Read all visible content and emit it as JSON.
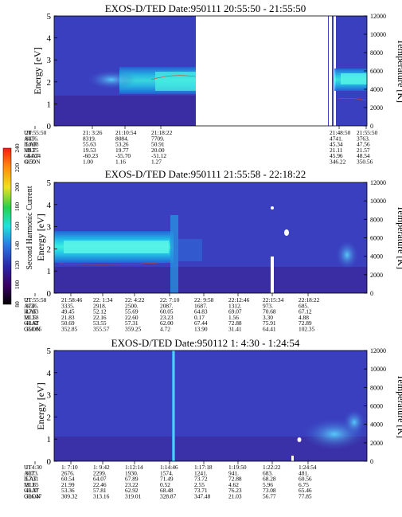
{
  "chart_data": [
    {
      "type": "heatmap",
      "title": "EXOS-D/TED   Date:950111   20:55:50 - 21:55:50",
      "ylabel": "Energy [eV]",
      "ylim": [
        0,
        5
      ],
      "y_ticks": [
        "0",
        "1",
        "2",
        "3",
        "4",
        "5"
      ],
      "y2label": "Temperature [K]",
      "y2lim": [
        0,
        12000
      ],
      "y2_ticks": [
        "0",
        "2000",
        "4000",
        "6000",
        "8000",
        "10000",
        "12000"
      ],
      "row_labels": [
        "UT",
        "ALT",
        "ILAT",
        "MLT",
        "GLAT",
        "GLON"
      ],
      "columns": [
        [
          "20:55:50",
          "8416.",
          "58.08",
          "19.25",
          "-64.74",
          "0.59"
        ],
        [
          "21: 3:26",
          "8319.",
          "55.63",
          "19.53",
          "-60.23",
          "1.00"
        ],
        [
          "21:10:54",
          "8084.",
          "53.26",
          "19.77",
          "-55.70",
          "1.16"
        ],
        [
          "21:18:22",
          "7709.",
          "50.91",
          "20.00",
          "-51.12",
          "1.27"
        ],
        [
          "21:48:50",
          "4741.",
          "45.34",
          "21.11",
          "45.96",
          "346.22"
        ],
        [
          "21:55:50",
          "3763.",
          "47.56",
          "21.57",
          "48.54",
          "350.56"
        ]
      ]
    },
    {
      "type": "heatmap",
      "title": "EXOS-D/TED   Date:950111   21:55:58 - 22:18:22",
      "ylabel": "Energy [eV]",
      "ylim": [
        0,
        5
      ],
      "y_ticks": [
        "0",
        "1",
        "2",
        "3",
        "4",
        "5"
      ],
      "y2label": "Temperature [K]",
      "y2lim": [
        0,
        12000
      ],
      "y2_ticks": [
        "0",
        "2000",
        "4000",
        "6000",
        "8000",
        "10000",
        "12000"
      ],
      "row_labels": [
        "UT",
        "ALT",
        "ILAT",
        "MLT",
        "GLAT",
        "GLON"
      ],
      "columns": [
        [
          "21:55:58",
          "3746.",
          "47.63",
          "21.58",
          "48.62",
          "350.65"
        ],
        [
          "21:58:46",
          "3335.",
          "49.45",
          "21.83",
          "50.69",
          "352.85"
        ],
        [
          "22: 1:34",
          "2918.",
          "52.12",
          "22.16",
          "53.55",
          "355.57"
        ],
        [
          "22: 4:22",
          "2500.",
          "55.69",
          "22.60",
          "57.31",
          "359.25"
        ],
        [
          "22: 7:10",
          "2087.",
          "60.05",
          "23.23",
          "62.00",
          "4.72"
        ],
        [
          "22: 9:58",
          "1687.",
          "64.83",
          "0.17",
          "67.44",
          "13.90"
        ],
        [
          "22:12:46",
          "1312.",
          "69.07",
          "1.56",
          "72.88",
          "31.41"
        ],
        [
          "22:15:34",
          "973.",
          "70.68",
          "3.30",
          "75.91",
          "64.41"
        ],
        [
          "22:18:22",
          "685.",
          "67.12",
          "4.88",
          "72.89",
          "102.35"
        ]
      ],
      "colorbar": {
        "label": "Second Harmonic Current",
        "ticks": [
          "80",
          "100",
          "120",
          "140",
          "160",
          "180",
          "200",
          "220",
          "240"
        ],
        "range": [
          80,
          240
        ]
      }
    },
    {
      "type": "heatmap",
      "title": "EXOS-D/TED   Date:950112   1: 4:30 - 1:24:54",
      "ylabel": "Energy [eV]",
      "ylim": [
        0,
        5
      ],
      "y_ticks": [
        "0",
        "1",
        "2",
        "3",
        "4",
        "5"
      ],
      "y2label": "Temperature [K]",
      "y2lim": [
        0,
        12000
      ],
      "y2_ticks": [
        "0",
        "2000",
        "4000",
        "6000",
        "8000",
        "10000",
        "12000"
      ],
      "row_labels": [
        "UT",
        "ALT",
        "ILAT",
        "MLT",
        "GLAT",
        "GLON"
      ],
      "columns": [
        [
          "1: 4:30",
          "3073.",
          "57.31",
          "21.65",
          "49.37",
          "306.47"
        ],
        [
          "1: 7:10",
          "2676.",
          "60.54",
          "21.99",
          "53.36",
          "309.32"
        ],
        [
          "1: 9:42",
          "2299.",
          "64.07",
          "22.46",
          "57.81",
          "313.16"
        ],
        [
          "1:12:14",
          "1930.",
          "67.89",
          "23.22",
          "62.92",
          "319.01"
        ],
        [
          "1:14:46",
          "1574.",
          "71.49",
          "0.52",
          "68.48",
          "328.87"
        ],
        [
          "1:17:18",
          "1241.",
          "73.72",
          "2.55",
          "73.71",
          "347.48"
        ],
        [
          "1:19:50",
          "941.",
          "72.88",
          "4.62",
          "76.23",
          "21.03"
        ],
        [
          "1:22:22",
          "683.",
          "68.28",
          "5.96",
          "73.08",
          "56.77"
        ],
        [
          "1:24:54",
          "481.",
          "60.56",
          "6.75",
          "65.46",
          "77.85"
        ]
      ]
    }
  ]
}
